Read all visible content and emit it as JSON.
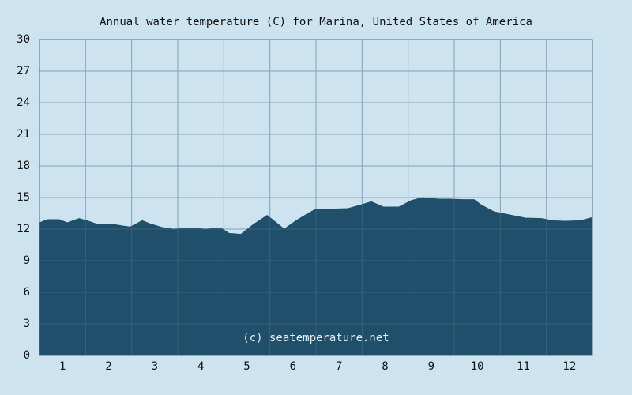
{
  "chart_data": {
    "type": "area",
    "title": "Annual water temperature (C) for Marina, United States of America",
    "annotation": "(c) seatemperature.net",
    "x": [
      0.5,
      0.67,
      0.93,
      1.1,
      1.36,
      1.53,
      1.79,
      2.04,
      2.3,
      2.47,
      2.73,
      2.9,
      3.16,
      3.41,
      3.76,
      4.1,
      4.44,
      4.61,
      4.87,
      5.13,
      5.44,
      5.64,
      5.81,
      6.07,
      6.33,
      6.5,
      6.84,
      7.19,
      7.44,
      7.7,
      7.96,
      8.3,
      8.56,
      8.81,
      9.16,
      9.41,
      9.67,
      9.93,
      10.1,
      10.36,
      10.7,
      11.04,
      11.39,
      11.64,
      11.9,
      12.24,
      12.5
    ],
    "series": [
      {
        "name": "Water temperature",
        "color": "#1f4f6b",
        "values": [
          12.6,
          12.9,
          12.9,
          12.6,
          13.0,
          12.8,
          12.4,
          12.5,
          12.3,
          12.2,
          12.8,
          12.5,
          12.15,
          12.0,
          12.1,
          12.0,
          12.1,
          11.6,
          11.5,
          12.4,
          13.3,
          12.6,
          12.0,
          12.8,
          13.5,
          13.9,
          13.9,
          13.95,
          14.25,
          14.6,
          14.1,
          14.1,
          14.7,
          15.0,
          14.85,
          14.85,
          14.8,
          14.8,
          14.25,
          13.65,
          13.35,
          13.05,
          13.0,
          12.8,
          12.75,
          12.8,
          13.1
        ]
      }
    ],
    "xlim": [
      0.5,
      12.5
    ],
    "xticks": [
      1,
      2,
      3,
      4,
      5,
      6,
      7,
      8,
      9,
      10,
      11,
      12
    ],
    "ylim": [
      0,
      30
    ],
    "yticks": [
      0,
      3,
      6,
      9,
      12,
      15,
      18,
      21,
      24,
      27,
      30
    ],
    "grid": true
  }
}
